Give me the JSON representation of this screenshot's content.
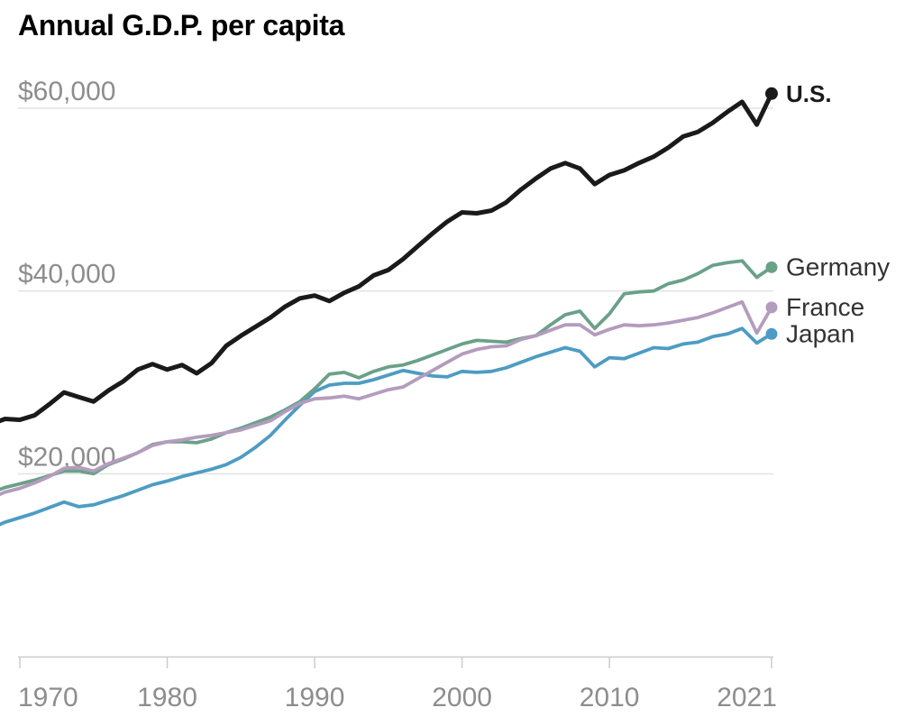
{
  "title": "Annual G.D.P. per capita",
  "colors": {
    "us": "#1a1a1a",
    "germany": "#6aa189",
    "france": "#b49cbd",
    "japan": "#4d9cc3",
    "gridline": "#e2e2e2",
    "axis": "#cccccc",
    "axis_label": "#8d8d8d",
    "series_label": "#333333"
  },
  "chart_data": {
    "type": "line",
    "title": "Annual G.D.P. per capita",
    "xlabel": "",
    "ylabel": "",
    "grid": "horizontal-only",
    "legend_position": "right-of-line-endpoints",
    "xlim": [
      1968,
      2021
    ],
    "ylim": [
      0,
      65000
    ],
    "x": [
      1968,
      1969,
      1970,
      1971,
      1972,
      1973,
      1974,
      1975,
      1976,
      1977,
      1978,
      1979,
      1980,
      1981,
      1982,
      1983,
      1984,
      1985,
      1986,
      1987,
      1988,
      1989,
      1990,
      1991,
      1992,
      1993,
      1994,
      1995,
      1996,
      1997,
      1998,
      1999,
      2000,
      2001,
      2002,
      2003,
      2004,
      2005,
      2006,
      2007,
      2008,
      2009,
      2010,
      2011,
      2012,
      2013,
      2014,
      2015,
      2016,
      2017,
      2018,
      2019,
      2020,
      2021
    ],
    "y_ticks": [
      {
        "value": 20000,
        "label": "$20,000"
      },
      {
        "value": 40000,
        "label": "$40,000"
      },
      {
        "value": 60000,
        "label": "$60,000"
      }
    ],
    "x_ticks": [
      {
        "value": 1970,
        "label": "1970"
      },
      {
        "value": 1980,
        "label": "1980"
      },
      {
        "value": 1990,
        "label": "1990"
      },
      {
        "value": 2000,
        "label": "2000"
      },
      {
        "value": 2010,
        "label": "2010"
      },
      {
        "value": 2021,
        "label": "2021"
      }
    ],
    "series": [
      {
        "name": "Japan",
        "color": "#4d9cc3",
        "bold": false,
        "values": [
          14000,
          14700,
          15200,
          15700,
          16300,
          16900,
          16400,
          16600,
          17100,
          17600,
          18200,
          18800,
          19200,
          19700,
          20100,
          20500,
          21000,
          21800,
          22900,
          24200,
          25900,
          27500,
          29000,
          29700,
          29900,
          29900,
          30300,
          30800,
          31300,
          31000,
          30700,
          30600,
          31200,
          31100,
          31200,
          31600,
          32200,
          32800,
          33300,
          33800,
          33400,
          31700,
          32700,
          32600,
          33200,
          33800,
          33700,
          34200,
          34400,
          35000,
          35300,
          35900,
          34300,
          35300
        ]
      },
      {
        "name": "Germany",
        "color": "#6aa189",
        "bold": false,
        "values": [
          17900,
          18500,
          18900,
          19300,
          19800,
          20300,
          20300,
          20000,
          21000,
          21600,
          22300,
          23200,
          23500,
          23500,
          23400,
          23800,
          24500,
          25000,
          25600,
          26200,
          27000,
          27900,
          29300,
          30900,
          31100,
          30500,
          31200,
          31700,
          31900,
          32400,
          33000,
          33600,
          34200,
          34600,
          34500,
          34400,
          34800,
          35100,
          36300,
          37400,
          37800,
          35900,
          37500,
          39700,
          39900,
          40000,
          40800,
          41200,
          41900,
          42800,
          43100,
          43300,
          41500,
          42600
        ]
      },
      {
        "name": "France",
        "color": "#b49cbd",
        "bold": false,
        "values": [
          17300,
          18000,
          18400,
          19000,
          19700,
          20600,
          20700,
          20300,
          21100,
          21700,
          22300,
          23100,
          23500,
          23700,
          24000,
          24200,
          24500,
          24800,
          25300,
          25800,
          26800,
          27700,
          28200,
          28300,
          28500,
          28200,
          28700,
          29200,
          29500,
          30400,
          31300,
          32200,
          33100,
          33600,
          33900,
          34000,
          34700,
          35100,
          35700,
          36300,
          36300,
          35200,
          35800,
          36300,
          36200,
          36300,
          36500,
          36800,
          37100,
          37600,
          38200,
          38800,
          35400,
          38200
        ]
      },
      {
        "name": "U.S.",
        "color": "#1a1a1a",
        "bold": true,
        "values": [
          25400,
          26000,
          25900,
          26400,
          27600,
          28900,
          28400,
          27900,
          29100,
          30100,
          31400,
          32000,
          31400,
          31900,
          31000,
          32100,
          34000,
          35100,
          36100,
          37100,
          38300,
          39200,
          39500,
          38900,
          39800,
          40500,
          41700,
          42300,
          43500,
          44900,
          46300,
          47600,
          48600,
          48500,
          48800,
          49700,
          51100,
          52300,
          53400,
          54000,
          53400,
          51700,
          52700,
          53200,
          54000,
          54700,
          55700,
          56900,
          57400,
          58400,
          59600,
          60700,
          58200,
          61600
        ]
      }
    ]
  }
}
